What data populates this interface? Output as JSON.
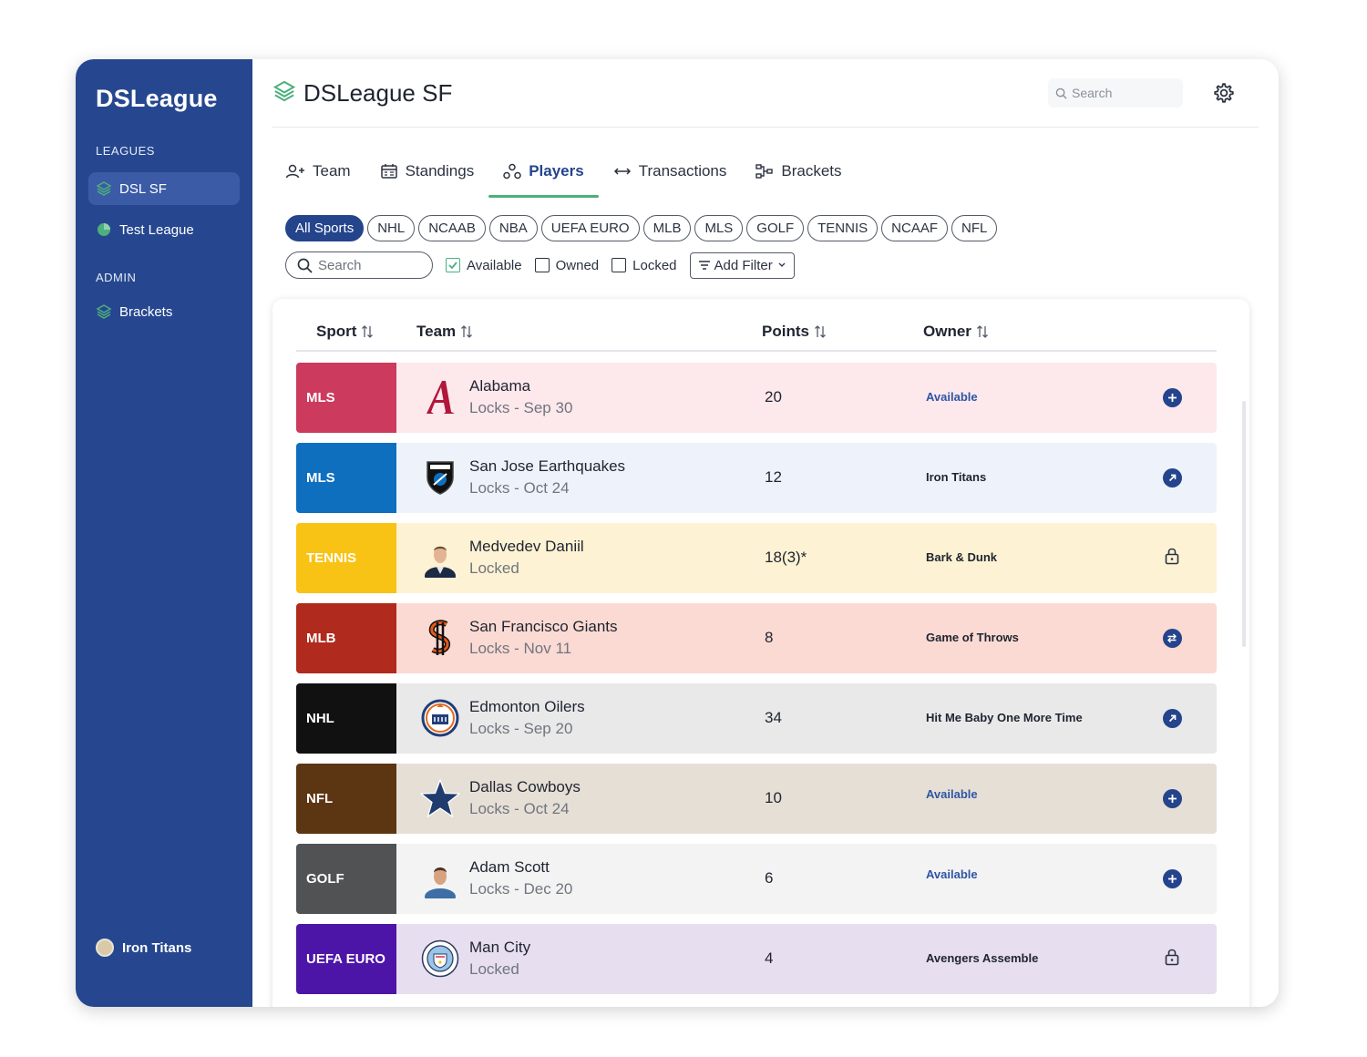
{
  "sidebar": {
    "brand": "DSLeague",
    "leagues_label": "LEAGUES",
    "leagues": [
      {
        "label": "DSL SF",
        "icon": "stack-icon",
        "active": true
      },
      {
        "label": "Test League",
        "icon": "pie-icon",
        "active": false
      }
    ],
    "admin_label": "ADMIN",
    "admin": [
      {
        "label": "Brackets",
        "icon": "stack-icon"
      }
    ],
    "user": {
      "name": "Iron Titans"
    }
  },
  "header": {
    "title": "DSLeague SF",
    "search_placeholder": "Search"
  },
  "tabs": [
    {
      "label": "Team",
      "icon": "user-plus-icon",
      "active": false
    },
    {
      "label": "Standings",
      "icon": "calendar-icon",
      "active": false
    },
    {
      "label": "Players",
      "icon": "nodes-icon",
      "active": true
    },
    {
      "label": "Transactions",
      "icon": "swap-icon",
      "active": false
    },
    {
      "label": "Brackets",
      "icon": "bracket-icon",
      "active": false
    }
  ],
  "sport_filters": [
    "All Sports",
    "NHL",
    "NCAAB",
    "NBA",
    "UEFA EURO",
    "MLB",
    "MLS",
    "GOLF",
    "TENNIS",
    "NCAAF",
    "NFL"
  ],
  "sport_filter_selected": "All Sports",
  "filters": {
    "search_placeholder": "Search",
    "available": {
      "label": "Available",
      "checked": true
    },
    "owned": {
      "label": "Owned",
      "checked": false
    },
    "locked": {
      "label": "Locked",
      "checked": false
    },
    "add_filter": "Add Filter"
  },
  "table": {
    "headers": {
      "sport": "Sport",
      "team": "Team",
      "points": "Points",
      "owner": "Owner"
    },
    "rows": [
      {
        "sport": "MLS",
        "sport_color": "#cc3a5e",
        "bg": "#fde8ec",
        "team": "Alabama",
        "sub": "Locks - Sep 30",
        "points": "20",
        "owner": "Available",
        "available": true,
        "action": "add",
        "logo": "alabama-logo"
      },
      {
        "sport": "MLS",
        "sport_color": "#0e6fbe",
        "bg": "#eef3fb",
        "team": "San Jose Earthquakes",
        "sub": "Locks - Oct 24",
        "points": "12",
        "owner": "Iron Titans",
        "available": false,
        "action": "open",
        "logo": "quakes-logo"
      },
      {
        "sport": "TENNIS",
        "sport_color": "#f8c315",
        "bg": "#fdf2d3",
        "team": "Medvedev Daniil",
        "sub": "Locked",
        "points": "18(3)*",
        "owner": "Bark & Dunk",
        "available": false,
        "action": "lock",
        "logo": "player-photo"
      },
      {
        "sport": "MLB",
        "sport_color": "#b02a1e",
        "bg": "#fadad3",
        "team": "San Francisco Giants",
        "sub": "Locks - Nov 11",
        "points": "8",
        "owner": "Game of Throws",
        "available": false,
        "action": "swap",
        "logo": "giants-logo"
      },
      {
        "sport": "NHL",
        "sport_color": "#111111",
        "bg": "#e9e9ea",
        "team": "Edmonton Oilers",
        "sub": "Locks - Sep 20",
        "points": "34",
        "owner": "Hit Me Baby One More Time",
        "available": false,
        "action": "open",
        "logo": "oilers-logo"
      },
      {
        "sport": "NFL",
        "sport_color": "#5c3512",
        "bg": "#e6dfd6",
        "team": "Dallas Cowboys",
        "sub": "Locks - Oct 24",
        "points": "10",
        "owner": "Available",
        "available": true,
        "action": "add",
        "logo": "cowboys-logo"
      },
      {
        "sport": "GOLF",
        "sport_color": "#515254",
        "bg": "#f3f3f4",
        "team": "Adam Scott",
        "sub": "Locks - Dec 20",
        "points": "6",
        "owner": "Available",
        "available": true,
        "action": "add",
        "logo": "player-photo"
      },
      {
        "sport": "UEFA EURO",
        "sport_color": "#4d14a8",
        "bg": "#e7def0",
        "team": "Man City",
        "sub": "Locked",
        "points": "4",
        "owner": "Avengers Assemble",
        "available": false,
        "action": "lock",
        "logo": "mancity-logo"
      }
    ]
  }
}
